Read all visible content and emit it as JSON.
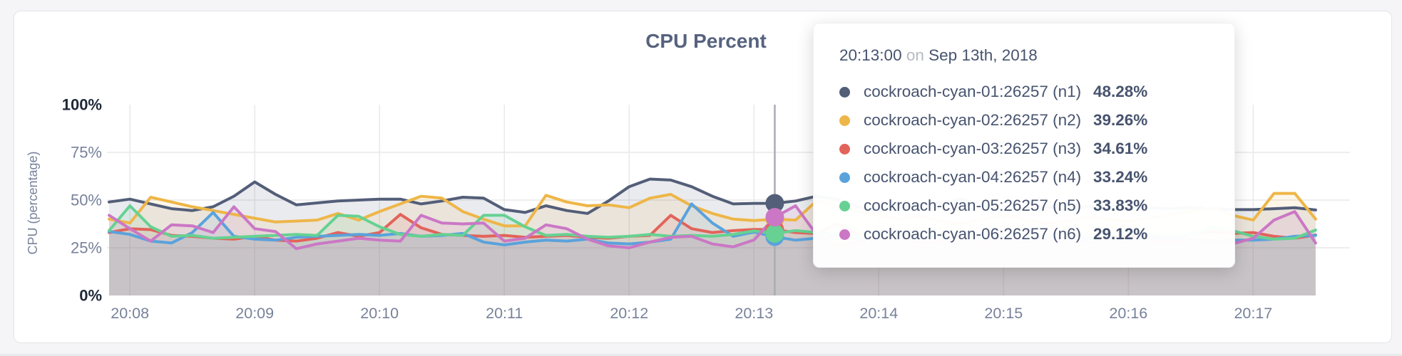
{
  "page": {
    "background": "#f5f5f7",
    "card_border": "#e3e4e7"
  },
  "chart_data": {
    "type": "area",
    "title": "CPU Percent",
    "xlabel": "",
    "ylabel": "CPU (percentage)",
    "ylim": [
      0,
      100
    ],
    "grid": true,
    "legend_position": "none",
    "y_ticks": [
      {
        "label": "100%",
        "value": 100,
        "dark": true
      },
      {
        "label": "75%",
        "value": 75,
        "dark": false
      },
      {
        "label": "50%",
        "value": 50,
        "dark": false
      },
      {
        "label": "25%",
        "value": 25,
        "dark": false
      },
      {
        "label": "0%",
        "value": 0,
        "dark": true
      }
    ],
    "x_ticks": [
      "20:08",
      "20:09",
      "20:10",
      "20:11",
      "20:12",
      "20:13",
      "20:14",
      "20:15",
      "20:16",
      "20:17"
    ],
    "x_tick_start_index": 1,
    "points_per_tick": 6,
    "sample_interval_seconds": 10,
    "axis_colors": {
      "tick_dark": "#1f2838",
      "tick_gray": "#77829a",
      "gridline": "#e8e9ea",
      "hover_line": "#a9adb4"
    },
    "fill_opacity": 0.12,
    "series": [
      {
        "name": "cockroach-cyan-01:26257 (n1)",
        "color": "#535e78",
        "values": [
          49,
          50.5,
          48,
          45.5,
          44.5,
          46.5,
          52,
          59.5,
          53,
          47.5,
          48.5,
          49.5,
          50,
          50.5,
          50.5,
          48,
          49.5,
          51.5,
          51,
          45,
          43.5,
          47,
          44.5,
          43,
          49.5,
          57,
          61,
          60.5,
          57,
          52,
          48,
          48.28,
          48.3,
          49.5,
          52,
          50.5,
          46.5,
          44,
          46.5,
          48,
          48.5,
          50.5,
          47.5,
          44.5,
          45.5,
          46.5,
          45,
          46.5,
          47,
          46.5,
          46,
          45.5,
          46,
          45.5,
          45,
          45,
          45.5,
          46,
          44.8
        ]
      },
      {
        "name": "cockroach-cyan-02:26257 (n2)",
        "color": "#eeb648",
        "values": [
          40,
          38,
          51.5,
          49,
          46.5,
          44.5,
          42.5,
          40.5,
          38.5,
          39,
          39.5,
          43,
          39.5,
          44,
          48,
          52,
          51,
          44,
          40,
          36.5,
          36.5,
          52.5,
          49,
          47,
          47.5,
          46,
          51,
          53,
          47,
          43,
          40,
          39.26,
          40,
          39.5,
          49.5,
          47,
          44,
          42,
          40,
          41.5,
          39,
          38,
          40,
          42,
          40,
          38,
          39,
          41,
          40,
          39,
          40.5,
          42.5,
          44,
          46,
          42,
          39.5,
          53.5,
          53.5,
          40
        ]
      },
      {
        "name": "cockroach-cyan-03:26257 (n3)",
        "color": "#e2635a",
        "values": [
          33,
          35,
          34.5,
          31.5,
          31,
          30,
          29.5,
          31,
          29,
          28.5,
          30,
          33,
          31,
          33,
          42.5,
          35.5,
          32,
          31.5,
          31,
          31.5,
          30.5,
          31,
          31.5,
          30.5,
          30,
          31,
          31.5,
          42,
          35,
          33,
          34,
          34.61,
          34.5,
          33,
          32.5,
          37.5,
          32,
          30,
          31,
          32,
          30.5,
          31,
          30,
          31.5,
          30.5,
          31,
          30,
          31,
          30.5,
          31.5,
          30.5,
          30,
          32,
          33.5,
          32.5,
          33,
          31,
          30,
          31.7
        ]
      },
      {
        "name": "cockroach-cyan-04:26257 (n4)",
        "color": "#5aa2dc",
        "values": [
          33.5,
          32,
          28.5,
          27.5,
          33,
          43.5,
          31,
          29.5,
          29,
          30.5,
          31,
          31.5,
          32,
          31.5,
          32.5,
          31,
          31.5,
          32.5,
          28,
          26.5,
          28,
          29,
          28.5,
          29.5,
          27.5,
          27,
          28,
          29.5,
          48,
          38,
          31,
          33.24,
          30.8,
          29,
          30,
          31,
          30,
          29,
          30,
          31,
          30,
          29.5,
          30,
          29,
          30,
          30.5,
          29.5,
          30,
          29.5,
          30,
          29.5,
          30,
          29.5,
          28,
          29,
          29,
          29.5,
          31,
          31.5
        ]
      },
      {
        "name": "cockroach-cyan-05:26257 (n5)",
        "color": "#66d192",
        "values": [
          34,
          47,
          36,
          31,
          31.5,
          30,
          30.5,
          31,
          31.5,
          32,
          31.5,
          42,
          41.5,
          36,
          32,
          31,
          32,
          31.5,
          42,
          42,
          36,
          31.5,
          32,
          31,
          30.5,
          31,
          32,
          31,
          31.5,
          31,
          32,
          33.83,
          32.5,
          34,
          33,
          32,
          31,
          32,
          33,
          32,
          31.5,
          32,
          32.5,
          31,
          32,
          31.5,
          32,
          31,
          32,
          33,
          32,
          31.5,
          32,
          35.5,
          34,
          31,
          29.5,
          30,
          34.3
        ]
      },
      {
        "name": "cockroach-cyan-06:26257 (n6)",
        "color": "#cb77c5",
        "values": [
          42,
          35,
          28.5,
          37,
          36.5,
          33,
          46.5,
          35,
          33.5,
          24.5,
          27,
          28.5,
          30,
          29,
          28.5,
          42,
          38,
          37.5,
          38,
          28.5,
          30,
          37,
          35,
          29.5,
          26,
          25,
          28,
          30.5,
          31,
          27,
          25.5,
          29.12,
          41,
          47,
          32,
          26,
          28,
          30,
          29,
          28,
          28.5,
          29,
          28,
          29.5,
          28,
          29,
          28.5,
          28,
          29,
          28.5,
          29,
          28,
          29,
          29,
          27,
          30,
          39.5,
          44,
          27.5
        ]
      }
    ]
  },
  "tooltip": {
    "time": "20:13:00",
    "on_word": "on",
    "date": "Sep 13th, 2018",
    "hover_index": 32,
    "rows": [
      {
        "label": "cockroach-cyan-01:26257 (n1)",
        "value": "48.28%",
        "color": "#535e78"
      },
      {
        "label": "cockroach-cyan-02:26257 (n2)",
        "value": "39.26%",
        "color": "#eeb648"
      },
      {
        "label": "cockroach-cyan-03:26257 (n3)",
        "value": "34.61%",
        "color": "#e2635a"
      },
      {
        "label": "cockroach-cyan-04:26257 (n4)",
        "value": "33.24%",
        "color": "#5aa2dc"
      },
      {
        "label": "cockroach-cyan-05:26257 (n5)",
        "value": "33.83%",
        "color": "#66d192"
      },
      {
        "label": "cockroach-cyan-06:26257 (n6)",
        "value": "29.12%",
        "color": "#cb77c5"
      }
    ]
  }
}
